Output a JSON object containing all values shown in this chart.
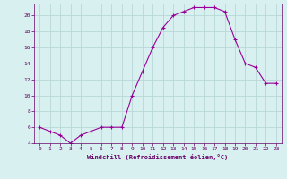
{
  "x": [
    0,
    1,
    2,
    3,
    4,
    5,
    6,
    7,
    8,
    9,
    10,
    11,
    12,
    13,
    14,
    15,
    16,
    17,
    18,
    19,
    20,
    21,
    22,
    23
  ],
  "y": [
    6,
    5.5,
    5,
    4,
    5,
    5.5,
    6,
    6,
    6,
    10,
    13,
    16,
    18.5,
    20,
    20.5,
    21,
    21,
    21,
    20.5,
    17,
    14,
    13.5,
    11.5,
    11.5
  ],
  "line_color": "#990099",
  "marker": "+",
  "marker_size": 3,
  "xlabel": "Windchill (Refroidissement éolien,°C)",
  "xlabel_color": "#660066",
  "background_color": "#d8f0f0",
  "grid_color": "#b8d8d8",
  "tick_color": "#660066",
  "xlim": [
    -0.5,
    23.5
  ],
  "ylim": [
    4,
    21.5
  ],
  "yticks": [
    4,
    6,
    8,
    10,
    12,
    14,
    16,
    18,
    20
  ],
  "xticks": [
    0,
    1,
    2,
    3,
    4,
    5,
    6,
    7,
    8,
    9,
    10,
    11,
    12,
    13,
    14,
    15,
    16,
    17,
    18,
    19,
    20,
    21,
    22,
    23
  ]
}
